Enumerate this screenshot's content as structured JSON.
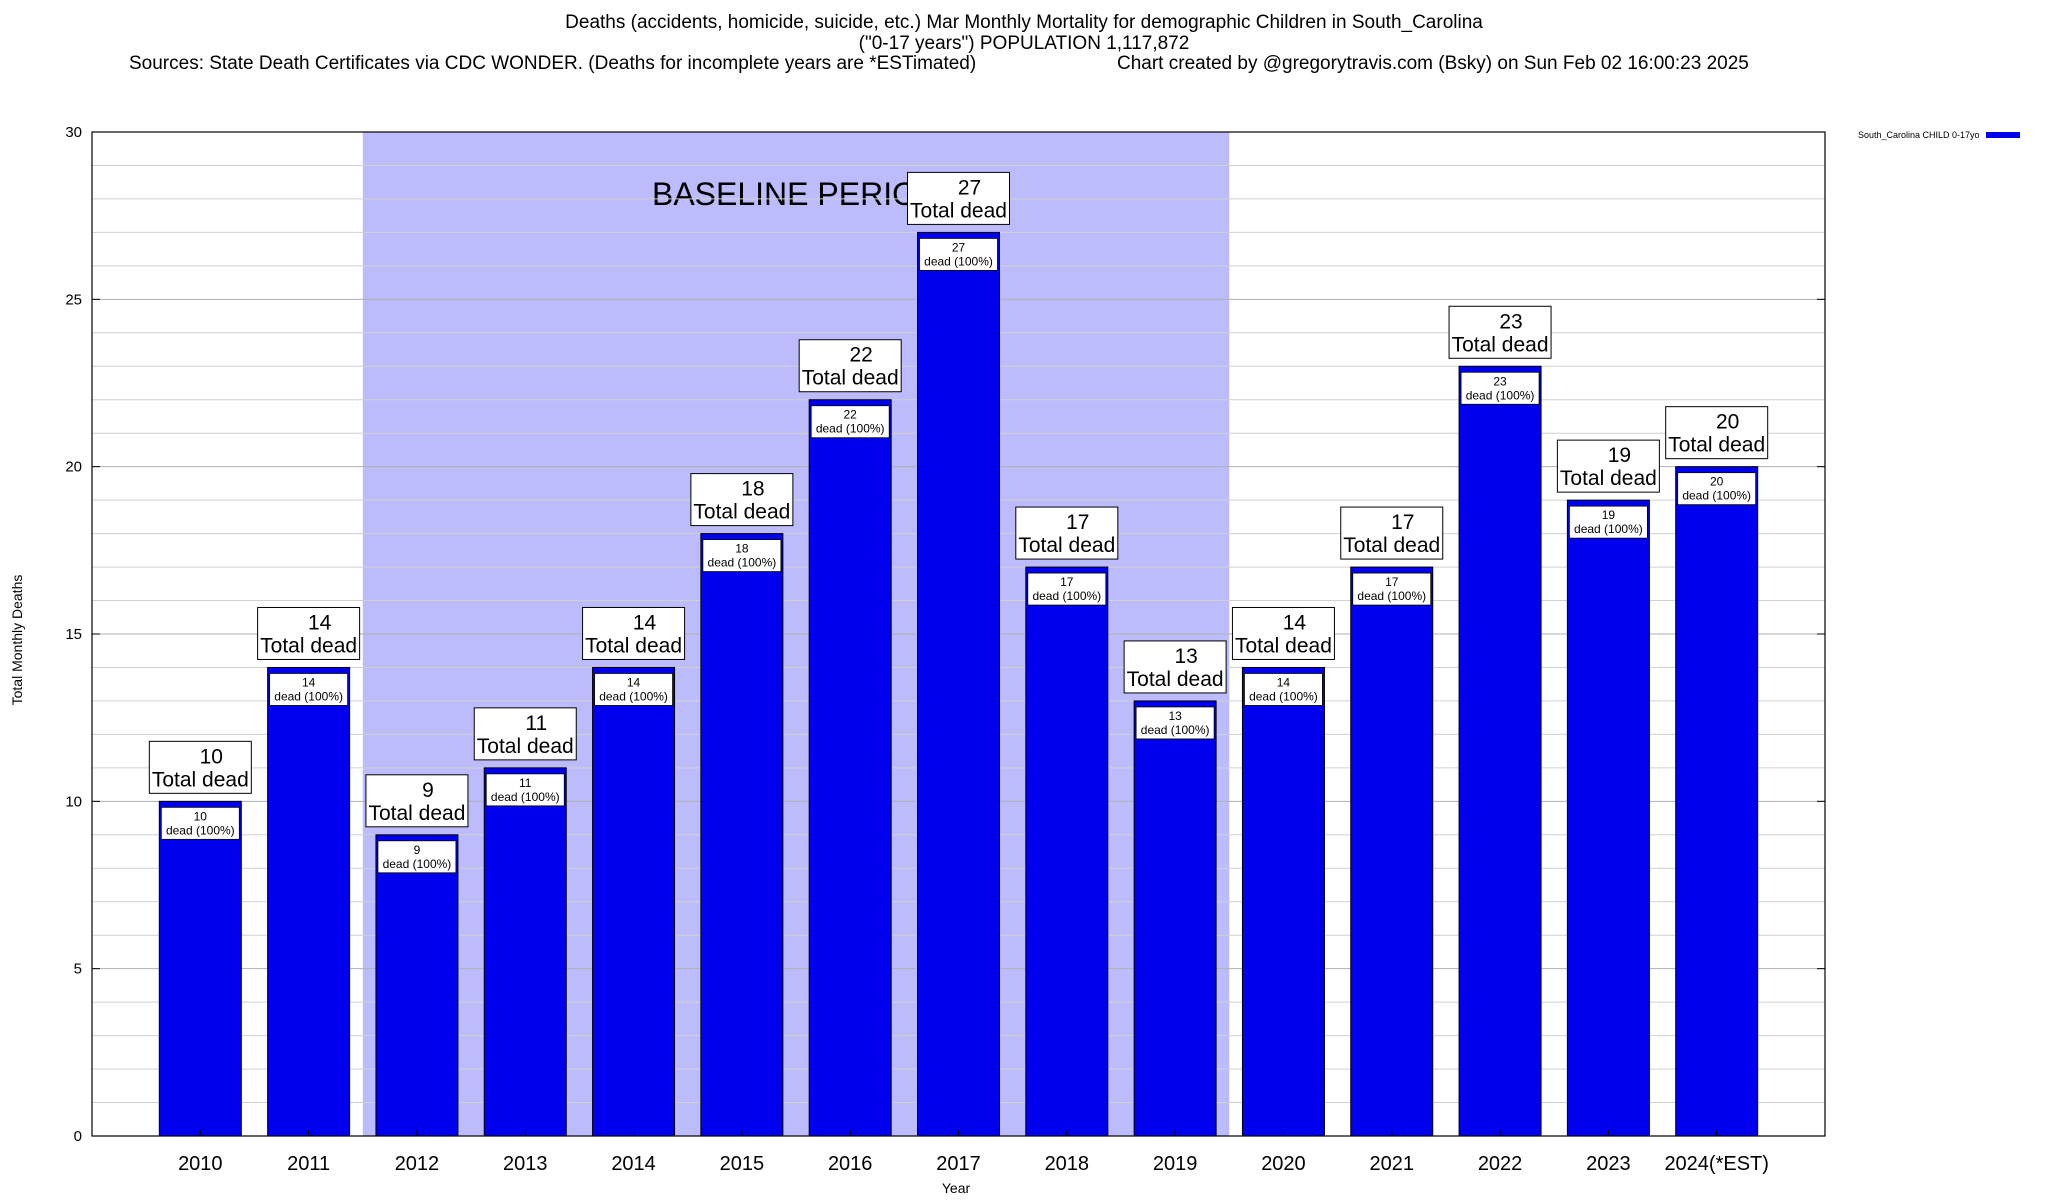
{
  "header": {
    "title_line1": "Deaths (accidents, homicide, suicide, etc.) Mar Monthly Mortality for demographic Children in South_Carolina",
    "title_line2": "(\"0-17 years\") POPULATION 1,117,872",
    "sources": "Sources: State Death Certificates via CDC WONDER. (Deaths for incomplete years are *ESTimated)",
    "credit": "Chart created by @gregorytravis.com (Bsky) on Sun Feb 02 16:00:23 2025"
  },
  "legend": {
    "label": "South_Carolina CHILD 0-17yo",
    "color": "#0000ee"
  },
  "chart_data": {
    "type": "bar",
    "title": "Deaths (accidents, homicide, suicide, etc.) Mar Monthly Mortality for demographic Children in South_Carolina",
    "xlabel": "Year",
    "ylabel": "Total Monthly Deaths",
    "ylim": [
      0,
      30
    ],
    "yticks": [
      0,
      5,
      10,
      15,
      20,
      25,
      30
    ],
    "grid": true,
    "legend_position": "top-right",
    "categories": [
      "2010",
      "2011",
      "2012",
      "2013",
      "2014",
      "2015",
      "2016",
      "2017",
      "2018",
      "2019",
      "2020",
      "2021",
      "2022",
      "2023",
      "2024(*EST)"
    ],
    "series": [
      {
        "name": "South_Carolina CHILD 0-17yo",
        "color": "#0000ee",
        "values": [
          10,
          14,
          9,
          11,
          14,
          18,
          22,
          27,
          17,
          13,
          14,
          17,
          23,
          19,
          20
        ]
      }
    ],
    "total_label_suffix": "Total dead",
    "inner_label_suffix": "dead (100%)",
    "baseline": {
      "label": "BASELINE PERIOD",
      "start": "2012",
      "end": "2019",
      "color": "#bcbcfc"
    }
  }
}
